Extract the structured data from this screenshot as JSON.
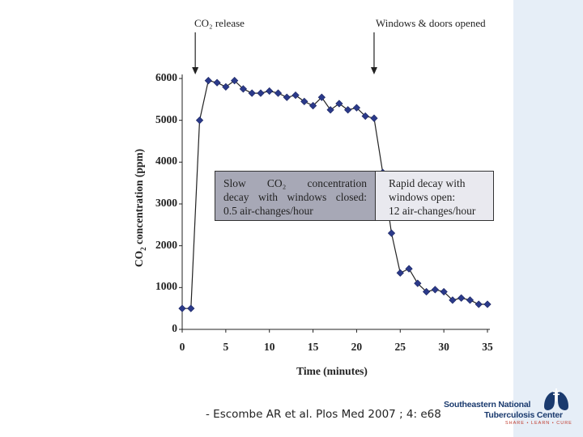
{
  "chart_data": {
    "type": "line",
    "title": "",
    "xlabel": "Time (minutes)",
    "ylabel": "CO2 concentration (ppm)",
    "xlim": [
      0,
      35
    ],
    "ylim": [
      0,
      6000
    ],
    "xticks": [
      0,
      5,
      10,
      15,
      20,
      25,
      30,
      35
    ],
    "yticks": [
      0,
      1000,
      2000,
      3000,
      4000,
      5000,
      6000
    ],
    "grid": false,
    "marker": "diamond",
    "series_color": "#2b3a8a",
    "series": [
      {
        "x": [
          0,
          1,
          2,
          3,
          4,
          5,
          6,
          7,
          8,
          9,
          10,
          11,
          12,
          13,
          14,
          15,
          16,
          17,
          18,
          19,
          20,
          21,
          22,
          23,
          24,
          25,
          26,
          27,
          28,
          29,
          30,
          31,
          32,
          33,
          34,
          35
        ],
        "y": [
          500,
          500,
          5000,
          5950,
          5900,
          5800,
          5950,
          5750,
          5650,
          5650,
          5700,
          5650,
          5550,
          5600,
          5450,
          5350,
          5550,
          5250,
          5400,
          5250,
          5300,
          5100,
          5050,
          3750,
          2300,
          1350,
          1450,
          1100,
          900,
          950,
          900,
          700,
          750,
          700,
          600,
          600
        ]
      }
    ],
    "annotations": [
      {
        "text": "CO₂ release",
        "at_x": 1.5
      },
      {
        "text": "Windows & doors opened",
        "at_x": 22
      }
    ],
    "boxes": {
      "left_lines": [
        "Slow CO₂ concentration",
        "decay with windows closed:",
        "0.5 air-changes/hour"
      ],
      "right_lines": [
        "Rapid decay with",
        "windows open:",
        "12 air-changes/hour"
      ]
    }
  },
  "citation": "- Escombe AR et al.  Plos Med 2007 ; 4: e68",
  "logo": {
    "line1": "Southeastern National",
    "line2": "Tuberculosis Center",
    "tagline": "SHARE • LEARN • CURE"
  },
  "colors": {
    "series": "#2b3a8a",
    "slide_band": "#e6eef7",
    "box_left": "#a7a8b6",
    "box_right": "#e9e9ef",
    "logo_blue": "#1a3a6e",
    "logo_red": "#c0392b"
  }
}
